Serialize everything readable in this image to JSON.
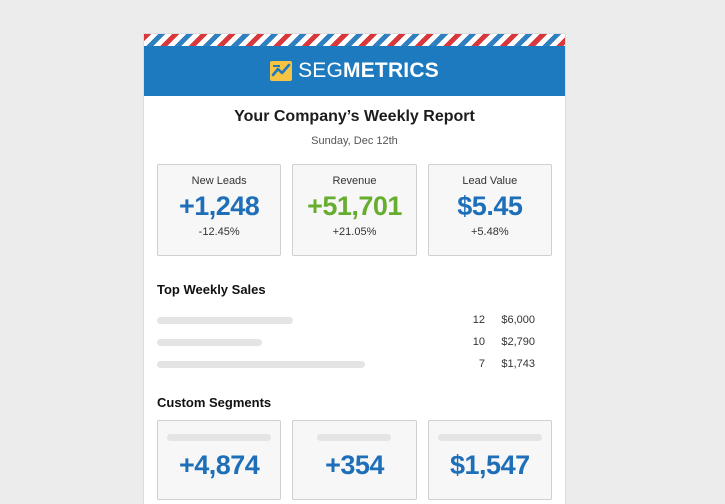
{
  "brand": {
    "part1": "SEG",
    "part2": "METRICS"
  },
  "report": {
    "title": "Your Company’s Weekly Report",
    "date": "Sunday, Dec 12th"
  },
  "colors": {
    "header": "#1e7abf",
    "blue": "#1e6fb8",
    "green": "#67ad2f",
    "stripe_red": "#d8373c",
    "stripe_blue": "#2f7fc1"
  },
  "kpis": [
    {
      "label": "New Leads",
      "value": "+1,248",
      "change": "-12.45%",
      "color": "#1e6fb8"
    },
    {
      "label": "Revenue",
      "value": "+51,701",
      "change": "+21.05%",
      "color": "#67ad2f"
    },
    {
      "label": "Lead Value",
      "value": "$5.45",
      "change": "+5.48%",
      "color": "#1e6fb8"
    }
  ],
  "top_sales": {
    "title": "Top Weekly Sales",
    "rows": [
      {
        "qty": "12",
        "amount": "$6,000"
      },
      {
        "qty": "10",
        "amount": "$2,790"
      },
      {
        "qty": "7",
        "amount": "$1,743"
      }
    ]
  },
  "custom_segments": {
    "title": "Custom Segments",
    "items": [
      {
        "value": "+4,874"
      },
      {
        "value": "+354"
      },
      {
        "value": "$1,547"
      }
    ]
  }
}
